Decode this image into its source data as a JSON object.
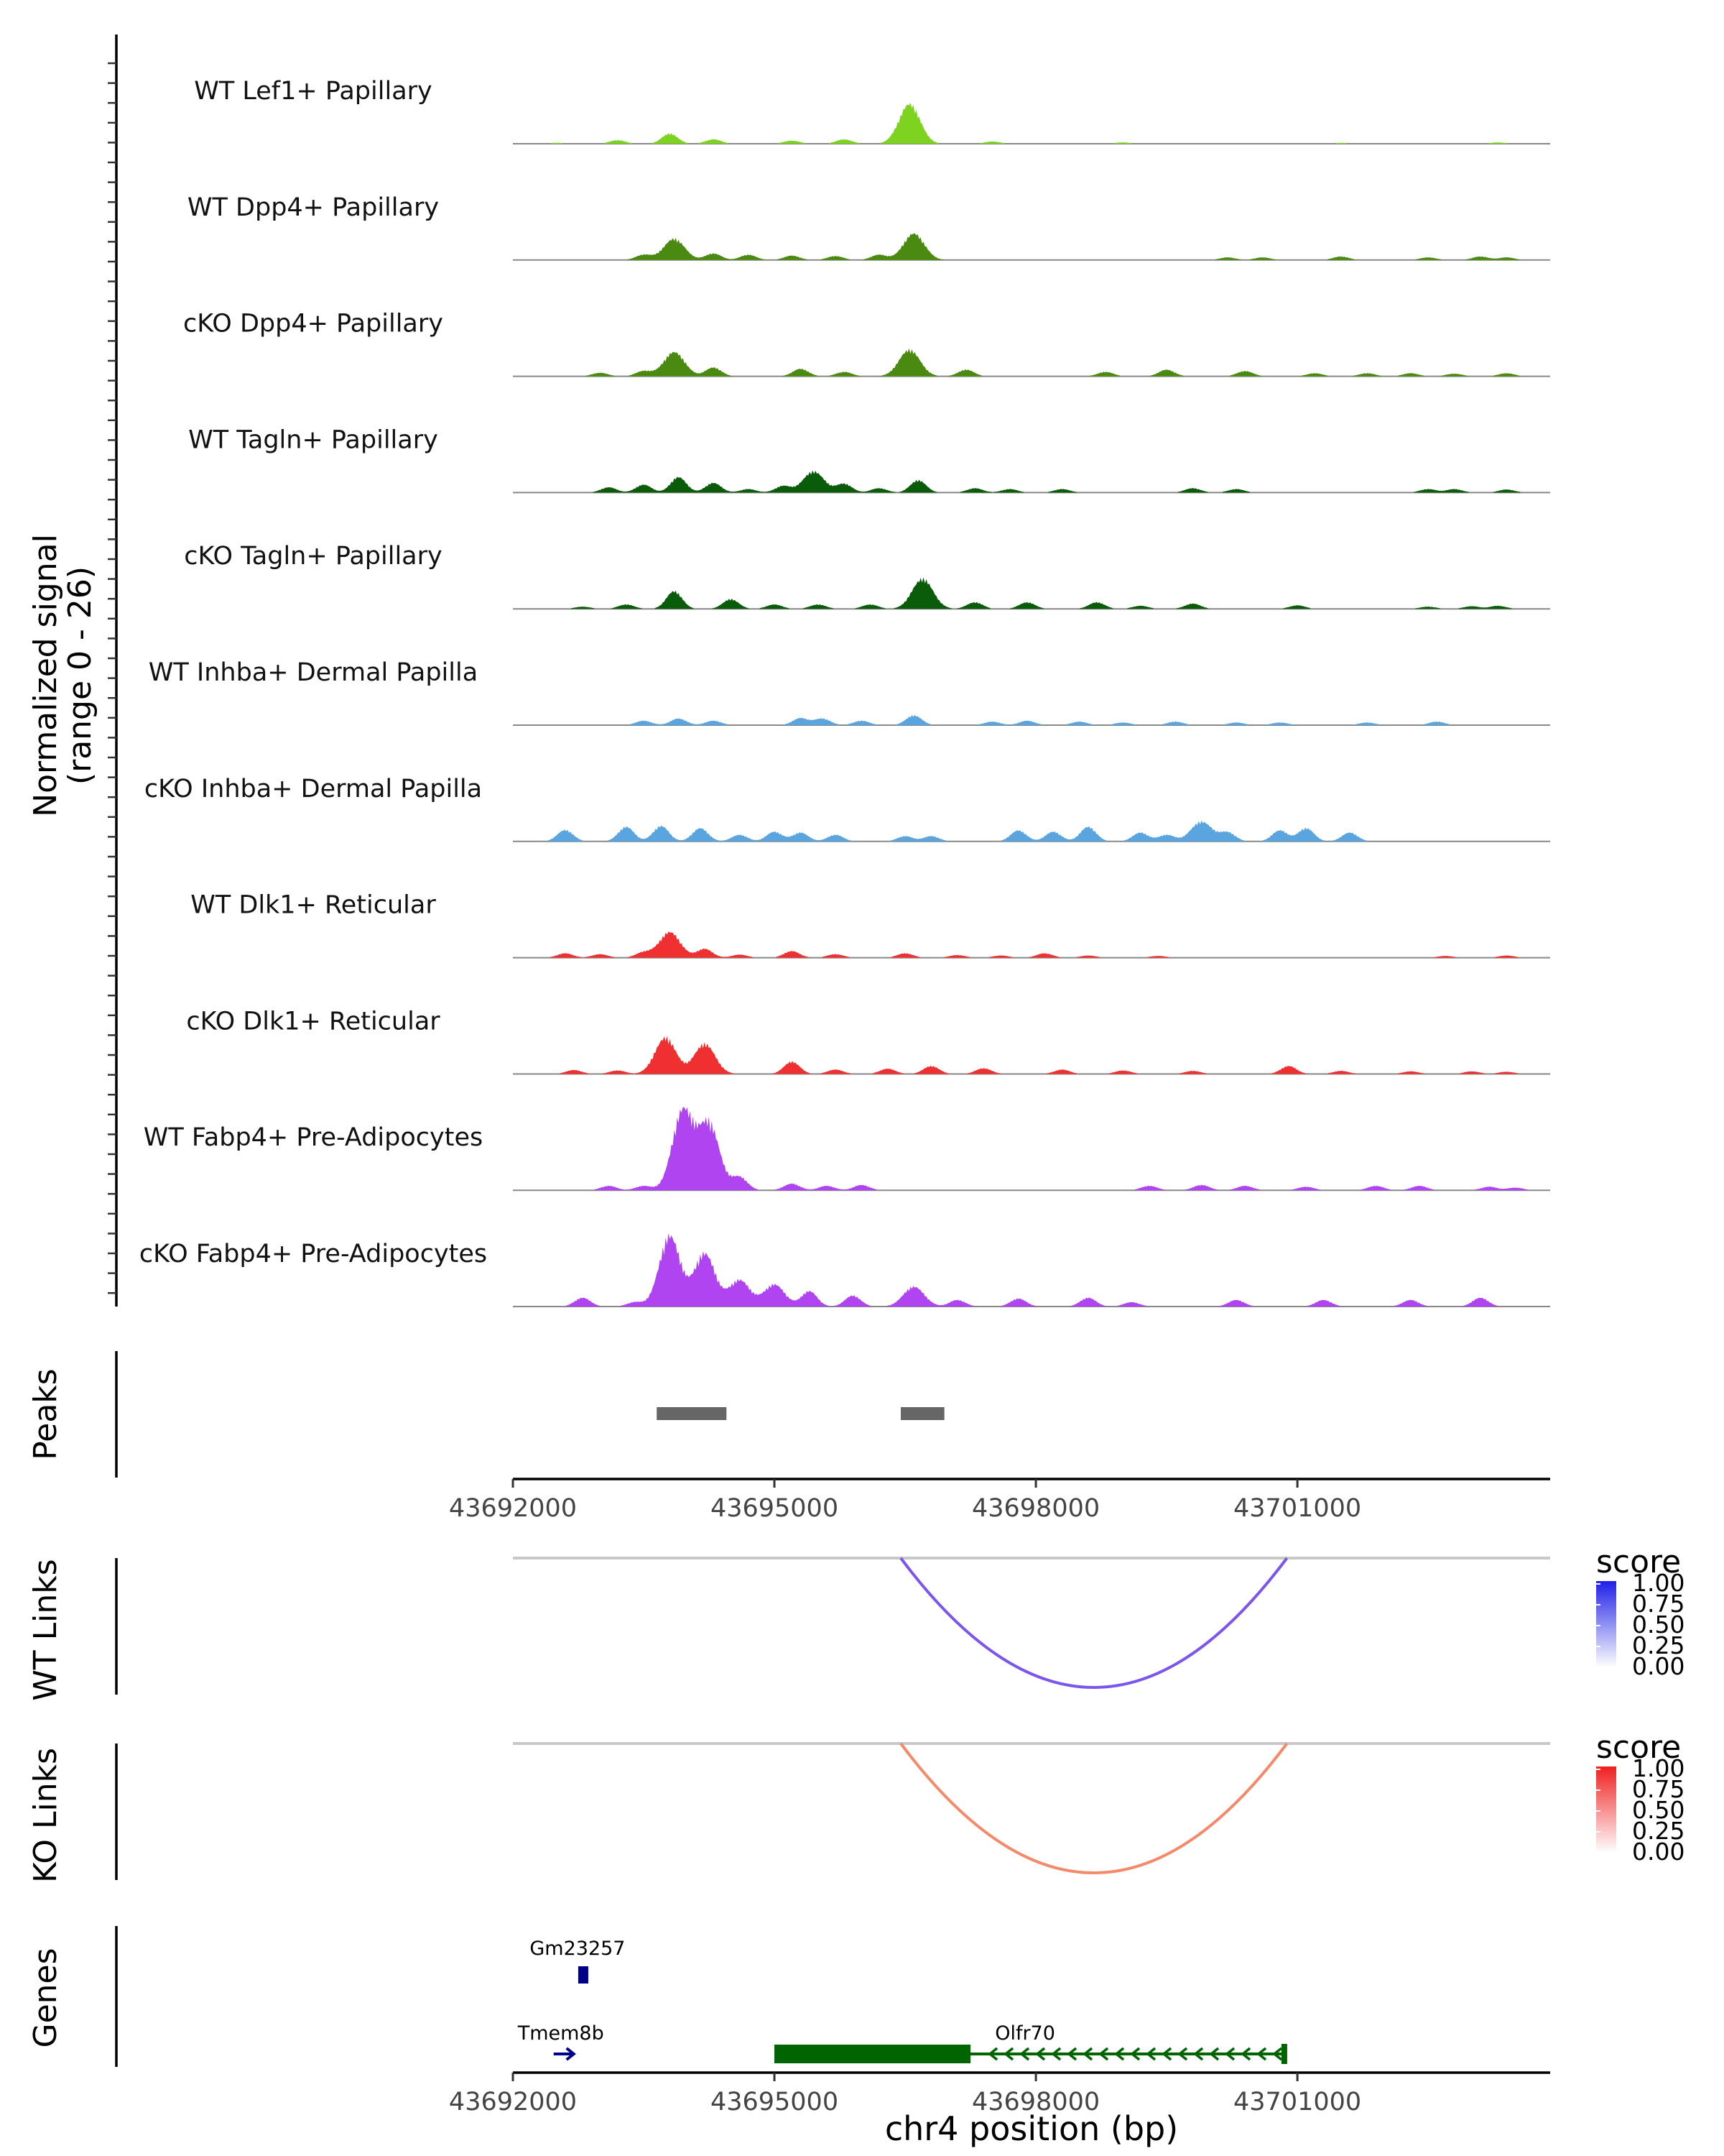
{
  "chart_data": {
    "type": "area",
    "title": "",
    "xlabel": "chr4 position (bp)",
    "xlim": [
      43692000,
      43703900
    ],
    "xticks": [
      "43692000",
      "43695000",
      "43698000",
      "43701000"
    ],
    "xtick_values": [
      43692000,
      43695000,
      43698000,
      43701000
    ],
    "coverage_ylabel_line1": "Normalized signal",
    "coverage_ylabel_line2": "(range 0 - 26)",
    "ylim": [
      0,
      26
    ],
    "tracks": [
      {
        "name": "WT Lef1+ Papillary",
        "color": "#7ed321",
        "peaks": [
          [
            43692500,
            0.2
          ],
          [
            43693200,
            0.8
          ],
          [
            43693800,
            2.3
          ],
          [
            43694300,
            1.0
          ],
          [
            43695200,
            0.7
          ],
          [
            43695800,
            1.0
          ],
          [
            43696550,
            9.0
          ],
          [
            43697500,
            0.5
          ],
          [
            43699000,
            0.3
          ],
          [
            43701500,
            0.2
          ],
          [
            43703300,
            0.3
          ]
        ]
      },
      {
        "name": "WT Dpp4+ Papillary",
        "color": "#4a8a10",
        "peaks": [
          [
            43693500,
            1.2
          ],
          [
            43693850,
            4.8
          ],
          [
            43694300,
            1.5
          ],
          [
            43694700,
            1.2
          ],
          [
            43695200,
            1.0
          ],
          [
            43695700,
            0.9
          ],
          [
            43696200,
            1.2
          ],
          [
            43696600,
            6.0
          ],
          [
            43700200,
            0.6
          ],
          [
            43700600,
            0.6
          ],
          [
            43701500,
            0.8
          ],
          [
            43702500,
            0.6
          ],
          [
            43703100,
            0.8
          ],
          [
            43703400,
            0.6
          ]
        ]
      },
      {
        "name": "cKO Dpp4+ Papillary",
        "color": "#4a8a10",
        "peaks": [
          [
            43693000,
            0.8
          ],
          [
            43693500,
            1.2
          ],
          [
            43693850,
            5.5
          ],
          [
            43694300,
            2.0
          ],
          [
            43695300,
            1.7
          ],
          [
            43695800,
            1.0
          ],
          [
            43696550,
            6.0
          ],
          [
            43697200,
            1.5
          ],
          [
            43698800,
            1.0
          ],
          [
            43699500,
            1.5
          ],
          [
            43700400,
            1.2
          ],
          [
            43701200,
            0.7
          ],
          [
            43701800,
            0.7
          ],
          [
            43702300,
            0.7
          ],
          [
            43702800,
            0.6
          ],
          [
            43703400,
            0.7
          ]
        ]
      },
      {
        "name": "WT Tagln+ Papillary",
        "color": "#0a5c0a",
        "peaks": [
          [
            43693100,
            1.2
          ],
          [
            43693500,
            1.8
          ],
          [
            43693900,
            3.5
          ],
          [
            43694300,
            2.2
          ],
          [
            43694700,
            0.8
          ],
          [
            43695100,
            1.5
          ],
          [
            43695450,
            4.8
          ],
          [
            43695800,
            2.0
          ],
          [
            43696200,
            1.0
          ],
          [
            43696650,
            2.8
          ],
          [
            43697300,
            1.0
          ],
          [
            43697700,
            0.8
          ],
          [
            43698300,
            0.8
          ],
          [
            43699800,
            1.0
          ],
          [
            43700300,
            0.8
          ],
          [
            43702500,
            0.8
          ],
          [
            43702800,
            0.8
          ],
          [
            43703400,
            0.7
          ]
        ]
      },
      {
        "name": "cKO Tagln+ Papillary",
        "color": "#0a5c0a",
        "peaks": [
          [
            43692800,
            0.5
          ],
          [
            43693300,
            1.0
          ],
          [
            43693850,
            4.0
          ],
          [
            43694500,
            2.2
          ],
          [
            43695000,
            1.0
          ],
          [
            43695500,
            1.0
          ],
          [
            43696100,
            1.0
          ],
          [
            43696700,
            6.8
          ],
          [
            43697300,
            1.5
          ],
          [
            43697900,
            1.5
          ],
          [
            43698700,
            1.5
          ],
          [
            43699200,
            0.7
          ],
          [
            43699800,
            1.2
          ],
          [
            43701000,
            0.8
          ],
          [
            43702500,
            0.5
          ],
          [
            43703000,
            0.6
          ],
          [
            43703300,
            0.7
          ]
        ]
      },
      {
        "name": "WT Inhba+ Dermal Papilla",
        "color": "#5aa5e0",
        "peaks": [
          [
            43693500,
            1.0
          ],
          [
            43693900,
            1.5
          ],
          [
            43694300,
            1.0
          ],
          [
            43695300,
            1.6
          ],
          [
            43695550,
            1.5
          ],
          [
            43696000,
            1.0
          ],
          [
            43696600,
            2.2
          ],
          [
            43697500,
            0.8
          ],
          [
            43697900,
            1.0
          ],
          [
            43698500,
            0.8
          ],
          [
            43699000,
            0.6
          ],
          [
            43699600,
            0.8
          ],
          [
            43700300,
            0.6
          ],
          [
            43700800,
            0.6
          ],
          [
            43701800,
            0.6
          ],
          [
            43702600,
            0.8
          ]
        ]
      },
      {
        "name": "cKO Inhba+ Dermal Papilla",
        "color": "#5aa5e0",
        "peaks": [
          [
            43692600,
            2.6
          ],
          [
            43693300,
            3.3
          ],
          [
            43693700,
            3.5
          ],
          [
            43694150,
            3.0
          ],
          [
            43694600,
            1.5
          ],
          [
            43695000,
            2.2
          ],
          [
            43695300,
            2.0
          ],
          [
            43695700,
            1.5
          ],
          [
            43696500,
            1.2
          ],
          [
            43696800,
            1.2
          ],
          [
            43697800,
            2.5
          ],
          [
            43698200,
            2.2
          ],
          [
            43698600,
            3.3
          ],
          [
            43699200,
            2.0
          ],
          [
            43699500,
            1.5
          ],
          [
            43699900,
            4.5
          ],
          [
            43700200,
            2.0
          ],
          [
            43700800,
            2.5
          ],
          [
            43701100,
            3.0
          ],
          [
            43701600,
            2.0
          ]
        ]
      },
      {
        "name": "WT Dlk1+ Reticular",
        "color": "#f03030",
        "peaks": [
          [
            43692600,
            1.0
          ],
          [
            43693000,
            0.8
          ],
          [
            43693500,
            1.2
          ],
          [
            43693800,
            5.8
          ],
          [
            43694200,
            2.0
          ],
          [
            43694600,
            0.7
          ],
          [
            43695200,
            1.5
          ],
          [
            43695700,
            0.8
          ],
          [
            43696500,
            1.0
          ],
          [
            43697100,
            0.6
          ],
          [
            43697600,
            0.5
          ],
          [
            43698100,
            1.0
          ],
          [
            43698600,
            0.5
          ],
          [
            43699400,
            0.4
          ],
          [
            43702700,
            0.4
          ],
          [
            43703400,
            0.5
          ]
        ]
      },
      {
        "name": "cKO Dlk1+ Reticular",
        "color": "#f03030",
        "peaks": [
          [
            43692700,
            0.9
          ],
          [
            43693200,
            0.8
          ],
          [
            43693750,
            8.2
          ],
          [
            43694200,
            6.8
          ],
          [
            43695200,
            2.8
          ],
          [
            43695700,
            1.0
          ],
          [
            43696300,
            1.2
          ],
          [
            43696800,
            1.8
          ],
          [
            43697400,
            1.3
          ],
          [
            43698300,
            1.0
          ],
          [
            43699000,
            0.8
          ],
          [
            43699800,
            0.7
          ],
          [
            43700900,
            1.8
          ],
          [
            43701500,
            0.7
          ],
          [
            43702300,
            0.6
          ],
          [
            43703000,
            0.6
          ],
          [
            43703400,
            0.5
          ]
        ]
      },
      {
        "name": "WT Fabp4+ Pre-Adipocytes",
        "color": "#b044f0",
        "peaks": [
          [
            43693100,
            1.0
          ],
          [
            43693500,
            1.0
          ],
          [
            43693950,
            18.0
          ],
          [
            43694250,
            15.0
          ],
          [
            43694600,
            3.0
          ],
          [
            43695200,
            1.5
          ],
          [
            43695600,
            1.0
          ],
          [
            43696000,
            1.2
          ],
          [
            43699300,
            1.0
          ],
          [
            43699900,
            1.2
          ],
          [
            43700400,
            1.0
          ],
          [
            43701100,
            0.8
          ],
          [
            43701900,
            1.0
          ],
          [
            43702400,
            1.0
          ],
          [
            43703200,
            0.8
          ],
          [
            43703500,
            0.6
          ]
        ]
      },
      {
        "name": "cKO Fabp4+ Pre-Adipocytes",
        "color": "#b044f0",
        "peaks": [
          [
            43692800,
            2.0
          ],
          [
            43693400,
            1.0
          ],
          [
            43693800,
            16.0
          ],
          [
            43694200,
            12.0
          ],
          [
            43694600,
            6.0
          ],
          [
            43695000,
            5.0
          ],
          [
            43695400,
            3.5
          ],
          [
            43695900,
            2.5
          ],
          [
            43696600,
            4.5
          ],
          [
            43697100,
            1.5
          ],
          [
            43697800,
            1.8
          ],
          [
            43698600,
            2.0
          ],
          [
            43699100,
            1.0
          ],
          [
            43700300,
            1.5
          ],
          [
            43701300,
            1.5
          ],
          [
            43702300,
            1.5
          ],
          [
            43703100,
            2.0
          ]
        ]
      }
    ],
    "peaks_track": {
      "label": "Peaks",
      "color": "#666666",
      "regions": [
        [
          43693650,
          43694450
        ],
        [
          43696450,
          43696950
        ]
      ]
    },
    "links": [
      {
        "label": "WT Links",
        "start": 43696450,
        "end": 43700880,
        "score": 0.72,
        "legend_title": "score",
        "legend_ticks": [
          "1.00",
          "0.75",
          "0.50",
          "0.25",
          "0.00"
        ],
        "color_high": "#2020e8",
        "color_low": "#ffffff",
        "arc_color": "#7a55ee"
      },
      {
        "label": "KO Links",
        "start": 43696450,
        "end": 43700880,
        "score": 0.55,
        "legend_title": "score",
        "legend_ticks": [
          "1.00",
          "0.75",
          "0.50",
          "0.25",
          "0.00"
        ],
        "color_high": "#f02020",
        "color_low": "#ffffff",
        "arc_color": "#f48a6a"
      }
    ],
    "genes_track": {
      "label": "Genes",
      "genes": [
        {
          "name": "Gm23257",
          "start": 43692700,
          "end": 43692800,
          "strand": "+",
          "color": "#00008b"
        },
        {
          "name": "Tmem8b",
          "start": 43692550,
          "end": 43692750,
          "strand": "+",
          "color": "#00008b"
        },
        {
          "name": "Olfr70",
          "start": 43695000,
          "end": 43700850,
          "cds_end": 43697250,
          "strand": "-",
          "color": "#006400"
        }
      ]
    }
  }
}
